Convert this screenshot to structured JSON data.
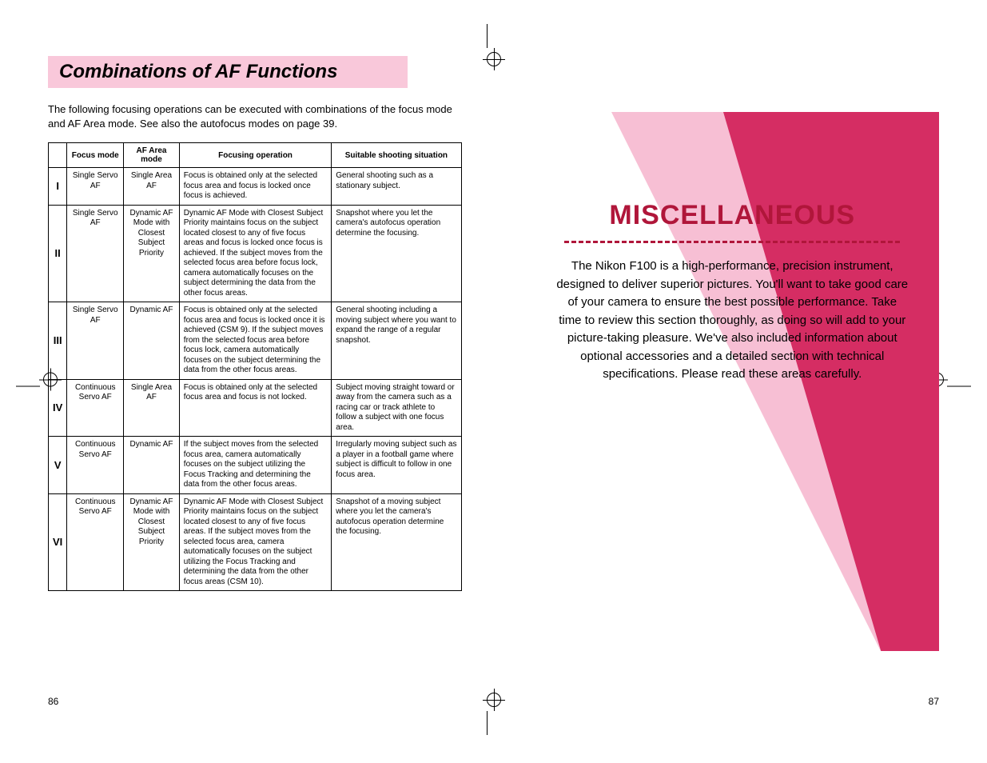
{
  "left": {
    "title": "Combinations of AF Functions",
    "intro": "The following focusing operations can be executed with combinations of the focus mode and AF Area mode. See also the autofocus modes on page 39.",
    "headers": [
      "",
      "Focus mode",
      "AF Area mode",
      "Focusing operation",
      "Suitable shooting situation"
    ],
    "rows": [
      {
        "n": "I",
        "fm": "Single Servo AF",
        "am": "Single Area AF",
        "op": "Focus is obtained only at the selected focus area and focus is locked once focus is achieved.",
        "sit": "General shooting such as a stationary subject."
      },
      {
        "n": "II",
        "fm": "Single Servo AF",
        "am": "Dynamic AF Mode with Closest Subject Priority",
        "op": "Dynamic AF Mode with Closest Subject Priority maintains focus on the subject located closest to any of five focus areas and focus is locked once focus is achieved. If the subject moves from the selected focus area before focus lock, camera automatically focuses on the subject determining the data from the other focus areas.",
        "sit": "Snapshot where you let the camera's autofocus operation determine the focusing."
      },
      {
        "n": "III",
        "fm": "Single Servo AF",
        "am": "Dynamic AF",
        "op": "Focus is obtained only at the selected focus area and focus is locked once it is achieved (CSM 9). If the subject moves from the selected focus area before focus lock, camera automatically focuses on the subject determining the data from the other focus areas.",
        "sit": "General shooting including a moving subject where you want to expand the range of a regular snapshot."
      },
      {
        "n": "IV",
        "fm": "Continuous Servo AF",
        "am": "Single Area AF",
        "op": "Focus is obtained only at the selected focus area and focus is not locked.",
        "sit": "Subject moving straight toward or away from the camera such as a racing car or track athlete to follow a subject with one focus area."
      },
      {
        "n": "V",
        "fm": "Continuous Servo AF",
        "am": "Dynamic AF",
        "op": "If the subject moves from the selected focus area, camera automatically focuses on the subject utilizing the Focus Tracking and determining the data from the other focus areas.",
        "sit": "Irregularly moving subject such as a player in a football game where subject is difficult to follow in one focus area."
      },
      {
        "n": "VI",
        "fm": "Continuous Servo AF",
        "am": "Dynamic AF Mode with Closest Subject Priority",
        "op": "Dynamic AF Mode with Closest Subject Priority maintains focus on the subject located closest to any of five focus areas. If the subject moves from the selected focus area, camera automatically focuses on the subject utilizing the Focus Tracking and determining the data from the other focus areas (CSM 10).",
        "sit": "Snapshot of a moving subject where you let the camera's autofocus operation determine the focusing."
      }
    ],
    "page_num": "86"
  },
  "right": {
    "title": "MISCELLANEOUS",
    "body": "The Nikon F100 is a high-performance, precision instrument, designed to deliver superior pictures. You'll want to take good care of your camera to ensure the best possible performance. Take time to review this section thoroughly, as doing so will add to your picture-taking pleasure. We've also included information about optional accessories and a detailed section with technical specifications. Please read these areas carefully.",
    "page_num": "87",
    "bg_colors": {
      "outer": "#f7bfd4",
      "inner": "#d52d63"
    }
  }
}
